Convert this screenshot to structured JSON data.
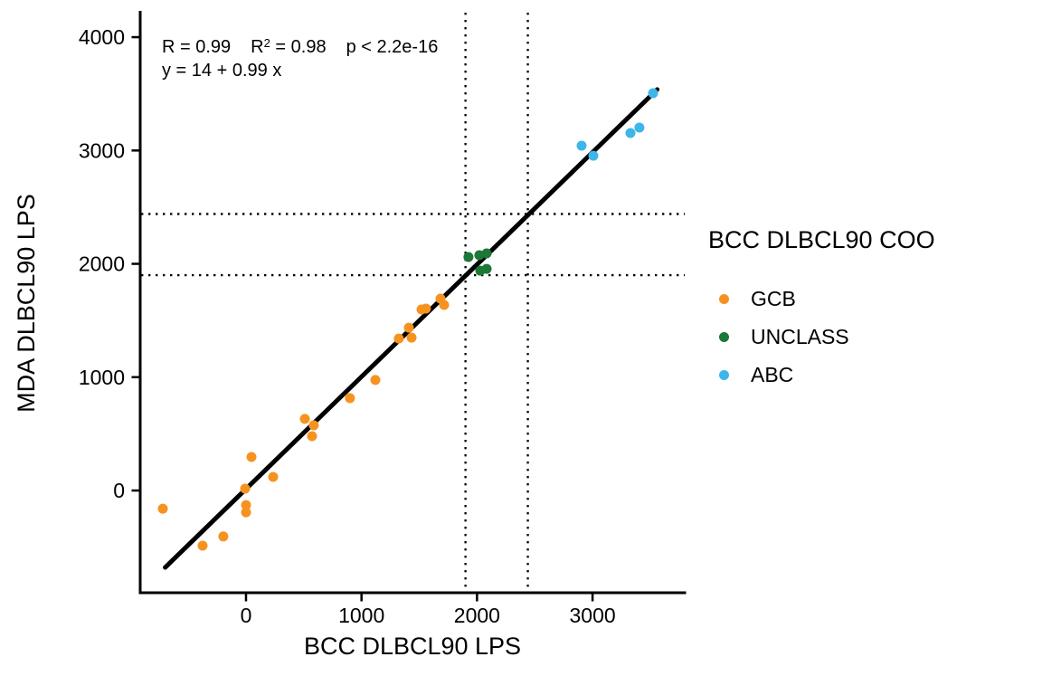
{
  "figure": {
    "background": "#ffffff",
    "annotation": {
      "r": "R = 0.99",
      "r2_base": "R",
      "r2_sup": "2",
      "r2_eq": " = 0.98",
      "p": "p < 2.2e-16",
      "equation": "y = 14 + 0.99 x"
    }
  },
  "chart_data": {
    "type": "scatter",
    "title": "",
    "xlabel": "BCC DLBCL90 LPS",
    "ylabel": "MDA DLBCL90 LPS",
    "xlim": [
      -916,
      3798
    ],
    "ylim": [
      -902,
      4216
    ],
    "x_ticks": [
      0,
      1000,
      2000,
      3000
    ],
    "y_ticks": [
      0,
      1000,
      2000,
      3000,
      4000
    ],
    "grid": "off",
    "threshold_lines": {
      "style": "dotted",
      "color": "#000000",
      "x_values": [
        1900,
        2440
      ],
      "y_values": [
        1900,
        2440
      ]
    },
    "regression_line": {
      "intercept": 14,
      "slope": 0.99,
      "x_start": -700,
      "x_end": 3560,
      "color": "#000000"
    },
    "legend": {
      "title": "BCC DLBCL90 COO",
      "position": "right"
    },
    "series": [
      {
        "name": "GCB",
        "color": "#F69320",
        "points": [
          [
            -720,
            -160
          ],
          [
            -376,
            -487
          ],
          [
            -196,
            -405
          ],
          [
            -8,
            16
          ],
          [
            0,
            -128
          ],
          [
            0,
            -192
          ],
          [
            47,
            296
          ],
          [
            235,
            120
          ],
          [
            509,
            632
          ],
          [
            572,
            479
          ],
          [
            587,
            575
          ],
          [
            900,
            815
          ],
          [
            1120,
            975
          ],
          [
            1323,
            1341
          ],
          [
            1410,
            1437
          ],
          [
            1433,
            1349
          ],
          [
            1519,
            1597
          ],
          [
            1558,
            1605
          ],
          [
            1684,
            1693
          ],
          [
            1715,
            1637
          ]
        ]
      },
      {
        "name": "UNCLASS",
        "color": "#1B7837",
        "points": [
          [
            1926,
            2060
          ],
          [
            2020,
            2076
          ],
          [
            2083,
            2092
          ],
          [
            2028,
            1940
          ],
          [
            2083,
            1956
          ]
        ]
      },
      {
        "name": "ABC",
        "color": "#3DB6E8",
        "points": [
          [
            2905,
            3042
          ],
          [
            3007,
            2954
          ],
          [
            3328,
            3154
          ],
          [
            3406,
            3202
          ],
          [
            3524,
            3505
          ]
        ]
      }
    ]
  }
}
